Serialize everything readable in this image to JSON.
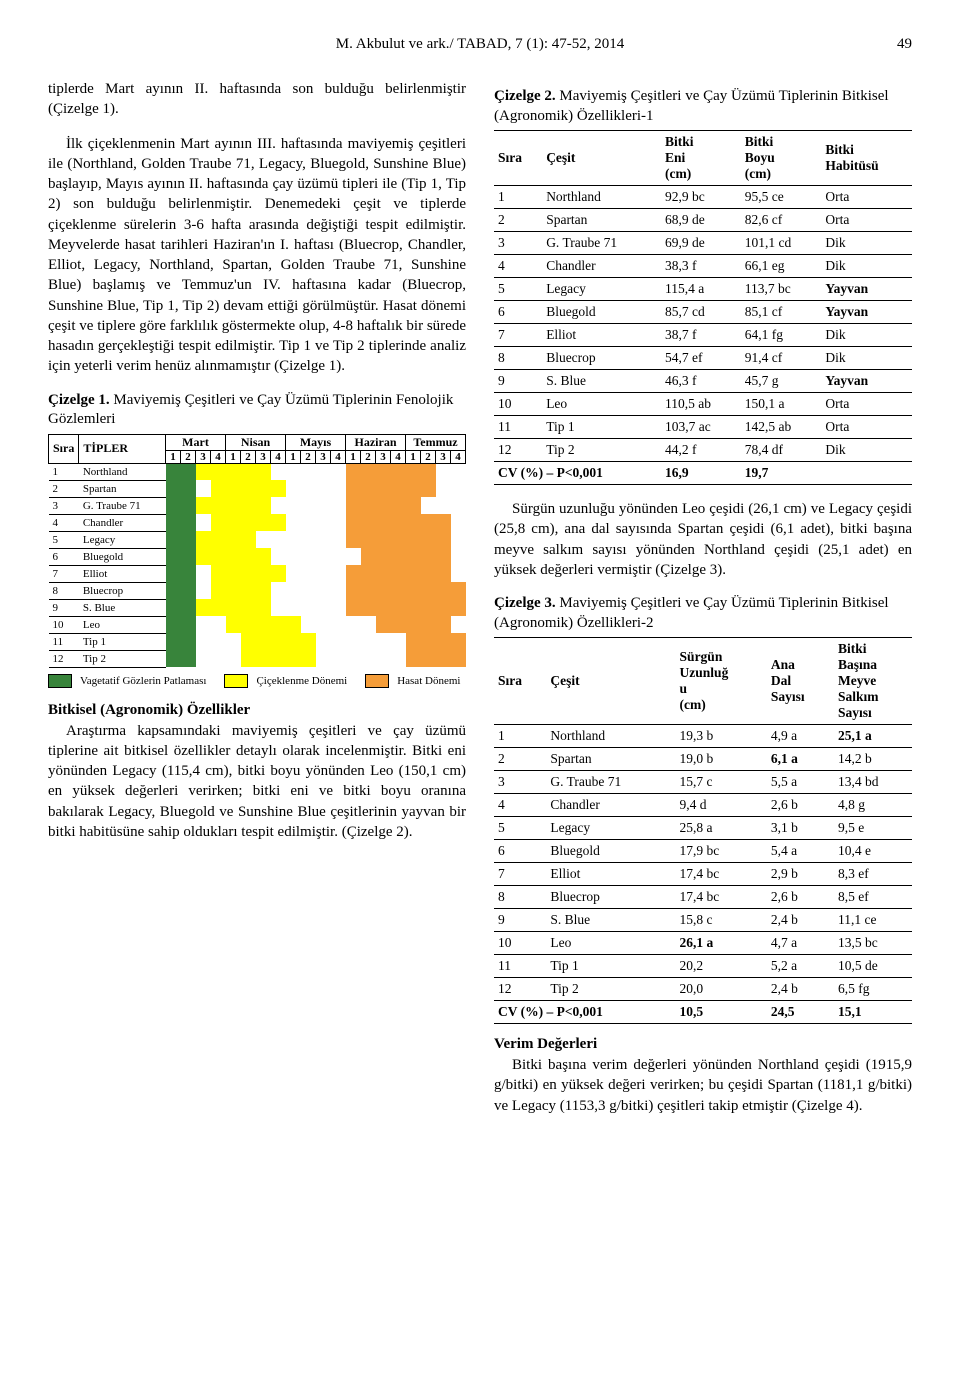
{
  "running_head": "M. Akbulut ve ark./ TABAD, 7 (1): 47-52, 2014",
  "page_number": "49",
  "left_para1": "tiplerde Mart ayının II. haftasında son bulduğu belirlenmiştir (Çizelge 1).",
  "left_para2": "İlk çiçeklenmenin Mart ayının III. haftasında maviyemiş çeşitleri ile (Northland, Golden Traube 71, Legacy, Bluegold, Sunshine Blue) başlayıp, Mayıs ayının II. haftasında çay üzümü tipleri ile (Tip 1, Tip 2) son bulduğu belirlenmiştir. Denemedeki çeşit ve tiplerde çiçeklenme sürelerin 3-6 hafta arasında değiştiği tespit edilmiştir. Meyvelerde hasat tarihleri Haziran'ın I. haftası (Bluecrop, Chandler, Elliot, Legacy, Northland, Spartan, Golden Traube 71, Sunshine Blue) başlamış ve Temmuz'un IV. haftasına kadar (Bluecrop, Sunshine Blue, Tip 1, Tip 2) devam ettiği görülmüştür. Hasat dönemi çeşit ve tiplere göre farklılık göstermekte olup, 4-8 haftalık bir sürede hasadın gerçekleştiği tespit edilmiştir. Tip 1 ve Tip 2 tiplerinde analiz için yeterli verim henüz alınmamıştır (Çizelge 1).",
  "ciz1_label": "Çizelge 1.",
  "ciz1_cap": " Maviyemiş Çeşitleri ve Çay Üzümü Tiplerinin Fenolojik Gözlemleri",
  "phen_hdr_sira": "Sıra",
  "phen_hdr_tip": "TİPLER",
  "months": [
    "Mart",
    "Nisan",
    "Mayıs",
    "Haziran",
    "Temmuz"
  ],
  "weeks": [
    "1",
    "2",
    "3",
    "4"
  ],
  "species": [
    "Northland",
    "Spartan",
    "G. Traube 71",
    "Chandler",
    "Legacy",
    "Bluegold",
    "Elliot",
    "Bluecrop",
    "S. Blue",
    "Leo",
    "Tip 1",
    "Tip 2"
  ],
  "colors": {
    "V": "#38843b",
    "F": "#ffff00",
    "H": "#f59d39",
    "N": "#ffffff"
  },
  "legend": {
    "V": "Vagetatif Gözlerin Patlaması",
    "F": "Çiçeklenme Dönemi",
    "H": "Hasat Dönemi"
  },
  "phen_rows": [
    [
      "V",
      "V",
      "F",
      "F",
      "F",
      "F",
      "F",
      "N",
      "N",
      "N",
      "N",
      "N",
      "H",
      "H",
      "H",
      "H",
      "H",
      "H",
      "N",
      "N"
    ],
    [
      "V",
      "V",
      "N",
      "F",
      "F",
      "F",
      "F",
      "F",
      "N",
      "N",
      "N",
      "N",
      "H",
      "H",
      "H",
      "H",
      "H",
      "H",
      "N",
      "N"
    ],
    [
      "V",
      "V",
      "F",
      "F",
      "F",
      "F",
      "F",
      "N",
      "N",
      "N",
      "N",
      "N",
      "H",
      "H",
      "H",
      "H",
      "H",
      "N",
      "N",
      "N"
    ],
    [
      "V",
      "V",
      "N",
      "F",
      "F",
      "F",
      "F",
      "F",
      "N",
      "N",
      "N",
      "N",
      "H",
      "H",
      "H",
      "H",
      "H",
      "H",
      "H",
      "N"
    ],
    [
      "V",
      "V",
      "F",
      "F",
      "F",
      "F",
      "N",
      "N",
      "N",
      "N",
      "N",
      "N",
      "H",
      "H",
      "H",
      "H",
      "H",
      "H",
      "H",
      "N"
    ],
    [
      "V",
      "V",
      "F",
      "F",
      "F",
      "F",
      "F",
      "N",
      "N",
      "N",
      "N",
      "N",
      "N",
      "H",
      "H",
      "H",
      "H",
      "H",
      "H",
      "N"
    ],
    [
      "V",
      "V",
      "N",
      "F",
      "F",
      "F",
      "F",
      "F",
      "N",
      "N",
      "N",
      "N",
      "H",
      "H",
      "H",
      "H",
      "H",
      "H",
      "H",
      "N"
    ],
    [
      "V",
      "V",
      "N",
      "F",
      "F",
      "F",
      "F",
      "N",
      "N",
      "N",
      "N",
      "N",
      "H",
      "H",
      "H",
      "H",
      "H",
      "H",
      "H",
      "H"
    ],
    [
      "V",
      "V",
      "F",
      "F",
      "F",
      "F",
      "F",
      "N",
      "N",
      "N",
      "N",
      "N",
      "H",
      "H",
      "H",
      "H",
      "H",
      "H",
      "H",
      "H"
    ],
    [
      "V",
      "V",
      "N",
      "N",
      "F",
      "F",
      "F",
      "F",
      "F",
      "N",
      "N",
      "N",
      "N",
      "N",
      "H",
      "H",
      "H",
      "H",
      "H",
      "N"
    ],
    [
      "V",
      "V",
      "N",
      "N",
      "N",
      "F",
      "F",
      "F",
      "F",
      "F",
      "N",
      "N",
      "N",
      "N",
      "N",
      "N",
      "H",
      "H",
      "H",
      "H"
    ],
    [
      "V",
      "V",
      "N",
      "N",
      "N",
      "F",
      "F",
      "F",
      "F",
      "F",
      "N",
      "N",
      "N",
      "N",
      "N",
      "N",
      "H",
      "H",
      "H",
      "H"
    ]
  ],
  "left_h_bitkisel": "Bitkisel (Agronomik) Özellikler",
  "left_para3": "Araştırma kapsamındaki maviyemiş çeşitleri ve çay üzümü tiplerine ait bitkisel özellikler detaylı olarak incelenmiştir. Bitki eni yönünden Legacy (115,4 cm), bitki boyu yönünden Leo (150,1 cm) en yüksek değerleri verirken; bitki eni ve bitki boyu oranına bakılarak Legacy, Bluegold ve Sunshine Blue çeşitlerinin yayvan bir bitki habitüsüne sahip oldukları tespit edilmiştir. (Çizelge 2).",
  "ciz2_label": "Çizelge 2.",
  "ciz2_cap": " Maviyemiş Çeşitleri ve Çay Üzümü Tiplerinin Bitkisel (Agronomik) Özellikleri-1",
  "t2": {
    "cols": [
      "Sıra",
      "Çeşit",
      "Bitki Eni (cm)",
      "Bitki Boyu (cm)",
      "Bitki Habitüsü"
    ],
    "rows": [
      [
        "1",
        "Northland",
        "92,9 bc",
        "95,5 ce",
        "Orta"
      ],
      [
        "2",
        "Spartan",
        "68,9 de",
        "82,6 cf",
        "Orta"
      ],
      [
        "3",
        "G. Traube 71",
        "69,9 de",
        "101,1 cd",
        "Dik"
      ],
      [
        "4",
        "Chandler",
        "38,3 f",
        "66,1 eg",
        "Dik"
      ],
      [
        "5",
        "Legacy",
        "115,4 a",
        "113,7 bc",
        "Yayvan"
      ],
      [
        "6",
        "Bluegold",
        "85,7 cd",
        "85,1 cf",
        "Yayvan"
      ],
      [
        "7",
        "Elliot",
        "38,7 f",
        "64,1 fg",
        "Dik"
      ],
      [
        "8",
        "Bluecrop",
        "54,7 ef",
        "91,4 cf",
        "Dik"
      ],
      [
        "9",
        "S. Blue",
        "46,3 f",
        "45,7 g",
        "Yayvan"
      ],
      [
        "10",
        "Leo",
        "110,5 ab",
        "150,1 a",
        "Orta"
      ],
      [
        "11",
        "Tip 1",
        "103,7 ac",
        "142,5 ab",
        "Orta"
      ],
      [
        "12",
        "Tip 2",
        "44,2 f",
        "78,4 df",
        "Dik"
      ]
    ],
    "foot": [
      "CV (%) – P<0,001",
      "16,9",
      "19,7",
      ""
    ]
  },
  "right_para1": "Sürgün uzunluğu yönünden Leo çeşidi (26,1 cm) ve Legacy çeşidi (25,8 cm), ana dal sayısında Spartan çeşidi (6,1 adet), bitki başına meyve salkım sayısı yönünden Northland çeşidi (25,1 adet) en yüksek değerleri vermiştir (Çizelge 3).",
  "ciz3_label": "Çizelge 3.",
  "ciz3_cap": " Maviyemiş Çeşitleri ve Çay Üzümü Tiplerinin Bitkisel (Agronomik) Özellikleri-2",
  "t3": {
    "cols": [
      "Sıra",
      "Çeşit",
      "Sürgün Uzunluğ u (cm)",
      "Ana Dal Sayısı",
      "Bitki Başına Meyve Salkım Sayısı"
    ],
    "rows": [
      [
        "1",
        "Northland",
        "19,3 b",
        "4,9 a",
        "25,1 a"
      ],
      [
        "2",
        "Spartan",
        "19,0 b",
        "6,1 a",
        "14,2 b"
      ],
      [
        "3",
        "G. Traube 71",
        "15,7 c",
        "5,5 a",
        "13,4 bd"
      ],
      [
        "4",
        "Chandler",
        "9,4 d",
        "2,6 b",
        "4,8 g"
      ],
      [
        "5",
        "Legacy",
        "25,8 a",
        "3,1 b",
        "9,5 e"
      ],
      [
        "6",
        "Bluegold",
        "17,9 bc",
        "5,4 a",
        "10,4 e"
      ],
      [
        "7",
        "Elliot",
        "17,4 bc",
        "2,9 b",
        "8,3 ef"
      ],
      [
        "8",
        "Bluecrop",
        "17,4 bc",
        "2,6 b",
        "8,5 ef"
      ],
      [
        "9",
        "S. Blue",
        "15,8 c",
        "2,4 b",
        "11,1 ce"
      ],
      [
        "10",
        "Leo",
        "26,1 a",
        "4,7 a",
        "13,5 bc"
      ],
      [
        "11",
        "Tip 1",
        "20,2",
        "5,2 a",
        "10,5 de"
      ],
      [
        "12",
        "Tip 2",
        "20,0",
        "2,4 b",
        "6,5 fg"
      ]
    ],
    "foot": [
      "CV (%) – P<0,001",
      "10,5",
      "24,5",
      "15,1"
    ]
  },
  "right_h_verim": "Verim Değerleri",
  "right_para2": "Bitki başına verim değerleri yönünden Northland çeşidi (1915,9 g/bitki) en yüksek değeri verirken; bu çeşidi Spartan (1181,1 g/bitki) ve Legacy (1153,3 g/bitki) çeşitleri takip etmiştir (Çizelge 4)."
}
